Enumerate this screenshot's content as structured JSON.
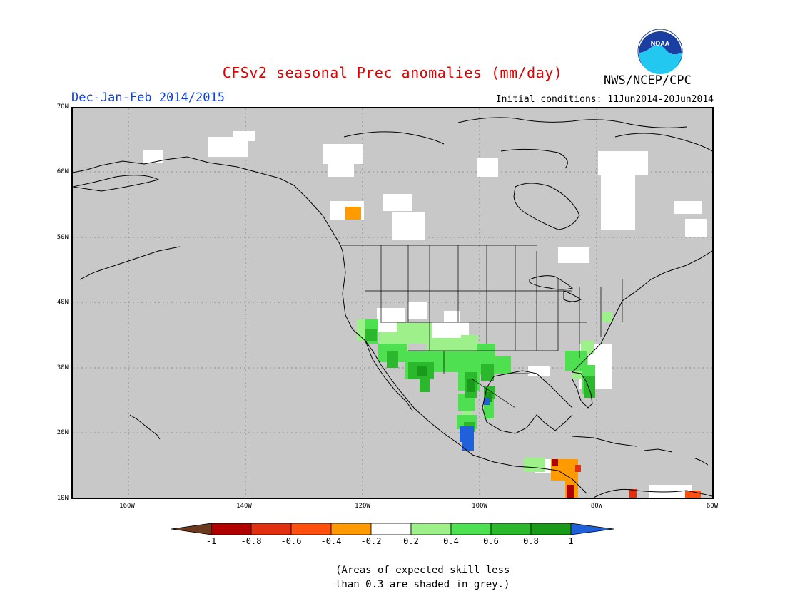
{
  "header": {
    "title": "CFSv2 seasonal Prec anomalies (mm/day)",
    "org": "NWS/NCEP/CPC",
    "logo_text": "NOAA",
    "season": "Dec-Jan-Feb 2014/2015",
    "initial_conditions": "Initial conditions: 11Jun2014-20Jun2014"
  },
  "map": {
    "background_color": "#c8c8c8",
    "lat_labels": [
      "70N",
      "60N",
      "50N",
      "40N",
      "30N",
      "20N",
      "10N"
    ],
    "lon_labels": [
      "160W",
      "140W",
      "120W",
      "100W",
      "80W",
      "60W"
    ],
    "grid": "dotted"
  },
  "colorbar": {
    "labels": [
      "-1",
      "-0.8",
      "-0.6",
      "-0.4",
      "-0.2",
      "0.2",
      "0.4",
      "0.6",
      "0.8",
      "1"
    ],
    "colors": {
      "below_min": "#6b3a1e",
      "bins": [
        "#b00000",
        "#e03010",
        "#ff5010",
        "#ff9a00",
        "#ffffff",
        "#9ef08a",
        "#4ee050",
        "#2cb82c",
        "#1a9a1a"
      ],
      "above_max": "#2060d8"
    }
  },
  "note": {
    "line1": "(Areas of expected skill less",
    "line2": "than 0.3 are shaded in grey.)"
  }
}
